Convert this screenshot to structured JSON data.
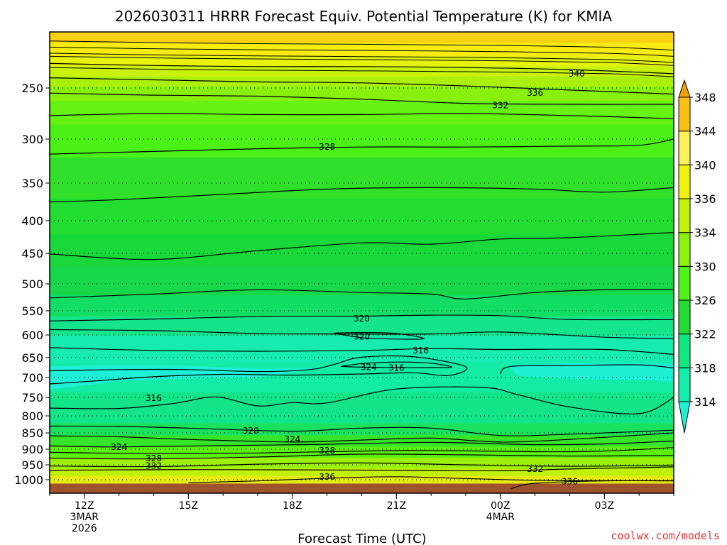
{
  "chart_data": {
    "type": "heatmap",
    "title": "2026030311 HRRR Forecast Equiv. Potential Temperature (K) for KMIA",
    "xlabel": "Forecast Time (UTC)",
    "ylabel": "",
    "credit": "coolwx.com/models",
    "x_ticks": [
      {
        "value": 12,
        "lines": [
          "12Z",
          "3MAR",
          "2026"
        ]
      },
      {
        "value": 15,
        "lines": [
          "15Z"
        ]
      },
      {
        "value": 18,
        "lines": [
          "18Z"
        ]
      },
      {
        "value": 21,
        "lines": [
          "21Z"
        ]
      },
      {
        "value": 24,
        "lines": [
          "00Z",
          "4MAR"
        ]
      },
      {
        "value": 27,
        "lines": [
          "03Z"
        ]
      }
    ],
    "xlim": [
      11,
      29
    ],
    "y_ticks": [
      250,
      300,
      350,
      400,
      450,
      500,
      550,
      600,
      650,
      700,
      750,
      800,
      850,
      900,
      950,
      1000
    ],
    "y_axis": "pressure (hPa), inverted",
    "colorbar": {
      "levels": [
        314,
        318,
        322,
        326,
        330,
        334,
        336,
        340,
        344,
        348
      ],
      "colors": [
        "#1ef0d6",
        "#13eeaa",
        "#10e880",
        "#22dc32",
        "#4ef414",
        "#8cf20a",
        "#c2f20a",
        "#f0f20c",
        "#fff05a",
        "#f8c010",
        "#f0a00a"
      ],
      "extend": "both"
    },
    "bands": [
      {
        "p": 1020,
        "value": 336,
        "color": "#e6ea14"
      },
      {
        "p": 985,
        "value": 334,
        "color": "#c0f00c"
      },
      {
        "p": 960,
        "value": 332,
        "color": "#9cf00a"
      },
      {
        "p": 925,
        "value": 328,
        "color": "#5cf010"
      },
      {
        "p": 890,
        "value": 326,
        "color": "#36e42a"
      },
      {
        "p": 855,
        "value": 322,
        "color": "#1ae260"
      },
      {
        "p": 820,
        "value": 320,
        "color": "#14e488"
      },
      {
        "p": 735,
        "value": 318,
        "color": "#12eca6"
      },
      {
        "p": 660,
        "value": 316,
        "color": "#16ecb0"
      },
      {
        "p": 600,
        "value": 320,
        "color": "#14e48c"
      },
      {
        "p": 560,
        "value": 322,
        "color": "#12de66"
      },
      {
        "p": 520,
        "value": 324,
        "color": "#16d84a"
      },
      {
        "p": 470,
        "value": 326,
        "color": "#18d83a"
      },
      {
        "p": 420,
        "value": 326,
        "color": "#22dc32"
      },
      {
        "p": 370,
        "value": 328,
        "color": "#30e02a"
      },
      {
        "p": 320,
        "value": 328,
        "color": "#4af016"
      },
      {
        "p": 285,
        "value": 330,
        "color": "#66f212"
      },
      {
        "p": 262,
        "value": 332,
        "color": "#88f00c"
      },
      {
        "p": 248,
        "value": 336,
        "color": "#aaf00c"
      },
      {
        "p": 238,
        "value": 338,
        "color": "#c8f20a"
      },
      {
        "p": 228,
        "value": 340,
        "color": "#e4f20c"
      },
      {
        "p": 218,
        "value": 342,
        "color": "#f6ec10"
      },
      {
        "p": 205,
        "value": 344,
        "color": "#f8d012"
      },
      {
        "p": 195,
        "value": 346,
        "color": "#f4b80e"
      }
    ],
    "contours": [
      {
        "label": "340",
        "label_at": [
          26.2,
          236
        ],
        "points": [
          [
            11.0,
            226
          ],
          [
            14,
            228
          ],
          [
            17,
            229
          ],
          [
            20,
            229
          ],
          [
            23,
            230
          ],
          [
            26,
            232
          ],
          [
            29,
            236
          ]
        ]
      },
      {
        "label": "336",
        "label_at": [
          25.0,
          255
        ],
        "points": [
          [
            11.0,
            240
          ],
          [
            14,
            242
          ],
          [
            17,
            244
          ],
          [
            20,
            245
          ],
          [
            23,
            248
          ],
          [
            26,
            252
          ],
          [
            29,
            256
          ]
        ]
      },
      {
        "label": "332",
        "label_at": [
          24.0,
          267
        ],
        "points": [
          [
            11.0,
            255
          ],
          [
            14,
            257
          ],
          [
            17,
            258
          ],
          [
            20,
            261
          ],
          [
            23,
            265
          ],
          [
            26,
            266
          ],
          [
            29,
            266
          ]
        ]
      },
      {
        "label": "",
        "label_at": null,
        "points": [
          [
            11.0,
            277
          ],
          [
            14,
            275
          ],
          [
            17,
            276
          ],
          [
            20,
            276
          ],
          [
            23,
            275
          ],
          [
            26,
            277
          ],
          [
            29,
            280
          ]
        ]
      },
      {
        "label": "328",
        "label_at": [
          19.0,
          309
        ],
        "points": [
          [
            11.0,
            317
          ],
          [
            14,
            314
          ],
          [
            17,
            311
          ],
          [
            20,
            309
          ],
          [
            23,
            309
          ],
          [
            26,
            308
          ],
          [
            28,
            307
          ],
          [
            29,
            300
          ]
        ]
      },
      {
        "label": "",
        "label_at": null,
        "points": [
          [
            11.0,
            375
          ],
          [
            13,
            372
          ],
          [
            16,
            365
          ],
          [
            19,
            358
          ],
          [
            22,
            356
          ],
          [
            25,
            358
          ],
          [
            27,
            362
          ],
          [
            29,
            356
          ]
        ]
      },
      {
        "label": "",
        "label_at": null,
        "points": [
          [
            11.0,
            451
          ],
          [
            14,
            460
          ],
          [
            17,
            446
          ],
          [
            20,
            434
          ],
          [
            22,
            436
          ],
          [
            24,
            428
          ],
          [
            26,
            426
          ],
          [
            29,
            418
          ]
        ]
      },
      {
        "label": "",
        "label_at": null,
        "points": [
          [
            11.0,
            526
          ],
          [
            14,
            519
          ],
          [
            17,
            511
          ],
          [
            20,
            516
          ],
          [
            22,
            519
          ],
          [
            23,
            528
          ],
          [
            25,
            516
          ],
          [
            27,
            511
          ],
          [
            29,
            510
          ]
        ]
      },
      {
        "label": "320",
        "label_at": [
          20.0,
          566
        ],
        "points": [
          [
            11.0,
            571
          ],
          [
            14,
            567
          ],
          [
            17,
            562
          ],
          [
            20,
            561
          ],
          [
            22,
            559
          ],
          [
            24,
            560
          ],
          [
            26,
            568
          ],
          [
            29,
            568
          ]
        ]
      },
      {
        "label": "320",
        "label_at": [
          20.0,
          604
        ],
        "points": [
          [
            19.2,
            596
          ],
          [
            20,
            595
          ],
          [
            21,
            597
          ],
          [
            21.8,
            608
          ],
          [
            21,
            609
          ],
          [
            20,
            606
          ],
          [
            19.2,
            596
          ]
        ]
      },
      {
        "label": "",
        "label_at": null,
        "points": [
          [
            11.0,
            589
          ],
          [
            14,
            591
          ],
          [
            17,
            597
          ],
          [
            19,
            598
          ],
          [
            22,
            598
          ],
          [
            24,
            594
          ],
          [
            27,
            605
          ],
          [
            29,
            608
          ]
        ]
      },
      {
        "label": "316",
        "label_at": [
          21.7,
          634
        ],
        "points": [
          [
            11.0,
            628
          ],
          [
            14,
            634
          ],
          [
            17,
            636
          ],
          [
            20,
            634
          ],
          [
            22,
            630
          ],
          [
            24,
            632
          ],
          [
            27,
            632
          ],
          [
            29,
            643
          ]
        ]
      },
      {
        "label": "324",
        "label_at": [
          20.2,
          674
        ],
        "points": [
          [
            19.4,
            672
          ],
          [
            20,
            665
          ],
          [
            21,
            661
          ],
          [
            22,
            664
          ],
          [
            22.6,
            674
          ],
          [
            22,
            675
          ],
          [
            21,
            675
          ],
          [
            20,
            674
          ],
          [
            19.4,
            672
          ]
        ]
      },
      {
        "label": "316",
        "label_at": [
          21.0,
          676
        ],
        "points": [
          [
            11.0,
            683
          ],
          [
            13,
            680
          ],
          [
            15,
            680
          ],
          [
            17,
            685
          ],
          [
            18.5,
            680
          ],
          [
            19.2,
            667
          ],
          [
            20,
            649
          ],
          [
            21.5,
            648
          ],
          [
            23,
            673
          ],
          [
            22.5,
            695
          ],
          [
            21.5,
            688
          ],
          [
            20,
            691
          ],
          [
            18,
            694
          ],
          [
            16,
            692
          ],
          [
            14,
            698
          ],
          [
            12.4,
            708
          ],
          [
            11.0,
            716
          ]
        ]
      },
      {
        "label": "",
        "label_at": null,
        "points": [
          [
            24.0,
            691
          ],
          [
            24.3,
            672
          ],
          [
            26,
            670
          ],
          [
            28,
            668
          ],
          [
            29,
            676
          ]
        ]
      },
      {
        "label": "316",
        "label_at": [
          14.0,
          752
        ],
        "points": [
          [
            11.0,
            779
          ],
          [
            13,
            780
          ],
          [
            14.6,
            766
          ],
          [
            15.8,
            749
          ],
          [
            17,
            773
          ],
          [
            18,
            764
          ],
          [
            19,
            765
          ],
          [
            21,
            729
          ],
          [
            23.5,
            725
          ],
          [
            24.5,
            743
          ],
          [
            26,
            776
          ],
          [
            28,
            794
          ],
          [
            29,
            750
          ]
        ]
      },
      {
        "label": "320",
        "label_at": [
          16.8,
          844
        ],
        "points": [
          [
            11.0,
            830
          ],
          [
            13,
            831
          ],
          [
            15,
            836
          ],
          [
            18,
            845
          ],
          [
            20,
            836
          ],
          [
            22,
            836
          ],
          [
            24,
            858
          ],
          [
            26,
            854
          ],
          [
            29,
            842
          ]
        ]
      },
      {
        "label": "324",
        "label_at": [
          18.0,
          870
        ],
        "points": [
          [
            11.0,
            859
          ],
          [
            13,
            862
          ],
          [
            15,
            870
          ],
          [
            18,
            878
          ],
          [
            20,
            872
          ],
          [
            22,
            866
          ],
          [
            24,
            878
          ],
          [
            26,
            870
          ],
          [
            29,
            850
          ]
        ]
      },
      {
        "label": "324",
        "label_at": [
          13.0,
          893
        ],
        "points": [
          [
            11.0,
            890
          ],
          [
            13,
            893
          ],
          [
            16,
            889
          ],
          [
            19,
            885
          ],
          [
            22,
            879
          ],
          [
            25,
            886
          ],
          [
            27,
            884
          ],
          [
            29,
            875
          ]
        ]
      },
      {
        "label": "328",
        "label_at": [
          19.0,
          905
        ],
        "points": [
          [
            11.0,
            910
          ],
          [
            14,
            914
          ],
          [
            17,
            912
          ],
          [
            20,
            906
          ],
          [
            22,
            904
          ],
          [
            25,
            908
          ],
          [
            27,
            906
          ],
          [
            29,
            895
          ]
        ]
      },
      {
        "label": "328",
        "label_at": [
          14.0,
          930
        ],
        "points": [
          [
            11.0,
            929
          ],
          [
            14,
            931
          ],
          [
            17,
            925
          ],
          [
            20,
            916
          ],
          [
            23,
            918
          ],
          [
            26,
            922
          ],
          [
            29,
            920
          ]
        ]
      },
      {
        "label": "332",
        "label_at": [
          14.0,
          954
        ],
        "points": [
          [
            11.0,
            954
          ],
          [
            14,
            956
          ],
          [
            17,
            948
          ],
          [
            20,
            944
          ],
          [
            23,
            950
          ],
          [
            26,
            955
          ],
          [
            29,
            951
          ]
        ]
      },
      {
        "label": "332",
        "label_at": [
          25.0,
          964
        ],
        "points": [
          [
            11.0,
            968
          ],
          [
            15,
            966
          ],
          [
            18,
            967
          ],
          [
            21,
            968
          ],
          [
            24,
            970
          ],
          [
            26,
            964
          ],
          [
            29,
            957
          ]
        ]
      },
      {
        "label": "336",
        "label_at": [
          19.0,
          991
        ],
        "points": [
          [
            15.0,
            1010
          ],
          [
            17,
            1004
          ],
          [
            19,
            995
          ],
          [
            21,
            990
          ],
          [
            23,
            996
          ],
          [
            25,
            1002
          ],
          [
            27,
            1003
          ],
          [
            29,
            1003
          ]
        ]
      },
      {
        "label": "336",
        "label_at": [
          26.0,
          1006
        ],
        "points": [
          [
            24.3,
            1030
          ],
          [
            25,
            1012
          ],
          [
            27,
            1004
          ],
          [
            29,
            1004
          ]
        ]
      }
    ],
    "ground": {
      "p": 1013,
      "color": "#a0522d"
    },
    "dotted_gridlines": [
      250,
      300,
      350,
      400,
      450,
      500,
      550,
      600,
      650,
      700,
      750,
      800,
      850,
      900,
      950,
      1000
    ]
  }
}
